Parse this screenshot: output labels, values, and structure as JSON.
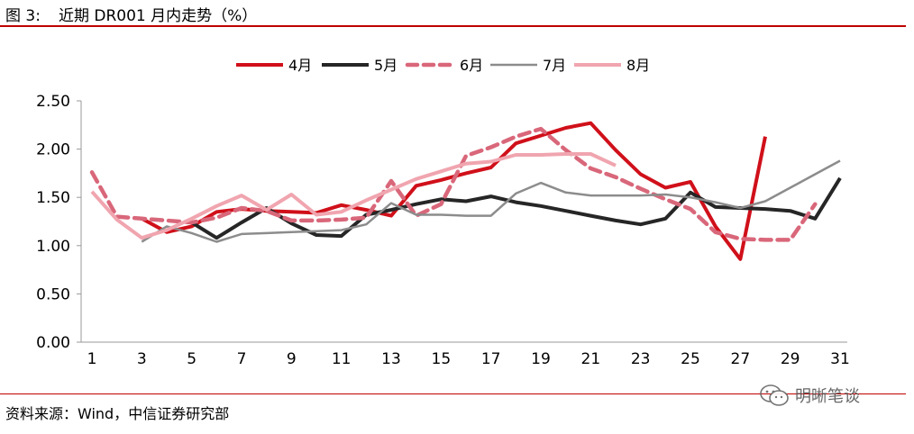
{
  "figure": {
    "number": "图 3:",
    "title": "近期 DR001 月内走势（%）",
    "source": "资料来源：Wind，中信证券研究部",
    "watermark_icon": "wechat-icon",
    "watermark_text": "明晰笔谈"
  },
  "chart_data": {
    "type": "line",
    "title": "近期 DR001 月内走势（%）",
    "xlabel": "",
    "ylabel": "",
    "xlim": [
      1,
      31
    ],
    "ylim": [
      0,
      2.5
    ],
    "x_ticks": [
      "1",
      "3",
      "5",
      "7",
      "9",
      "11",
      "13",
      "15",
      "17",
      "19",
      "21",
      "23",
      "25",
      "27",
      "29",
      "31"
    ],
    "y_ticks": [
      "0.00",
      "0.50",
      "1.00",
      "1.50",
      "2.00",
      "2.50"
    ],
    "grid": false,
    "legend_position": "top",
    "series": [
      {
        "name": "4月",
        "color": "#d0101a",
        "style": "solid-thick",
        "points": [
          [
            3,
            1.28
          ],
          [
            4,
            1.14
          ],
          [
            5,
            1.2
          ],
          [
            6,
            1.35
          ],
          [
            7,
            1.38
          ],
          [
            8,
            1.36
          ],
          [
            9,
            1.35
          ],
          [
            10,
            1.34
          ],
          [
            11,
            1.42
          ],
          [
            12,
            1.37
          ],
          [
            13,
            1.31
          ],
          [
            14,
            1.62
          ],
          [
            15,
            1.68
          ],
          [
            16,
            1.75
          ],
          [
            17,
            1.81
          ],
          [
            18,
            2.06
          ],
          [
            19,
            2.14
          ],
          [
            20,
            2.22
          ],
          [
            21,
            2.27
          ],
          [
            22,
            1.99
          ],
          [
            23,
            1.74
          ],
          [
            24,
            1.6
          ],
          [
            25,
            1.66
          ],
          [
            26,
            1.2
          ],
          [
            27,
            0.86
          ],
          [
            28,
            2.13
          ]
        ]
      },
      {
        "name": "5月",
        "color": "#262626",
        "style": "solid-thick",
        "points": [
          [
            5,
            1.24
          ],
          [
            6,
            1.08
          ],
          [
            7,
            1.24
          ],
          [
            8,
            1.39
          ],
          [
            9,
            1.23
          ],
          [
            10,
            1.11
          ],
          [
            11,
            1.1
          ],
          [
            12,
            1.32
          ],
          [
            13,
            1.37
          ],
          [
            14,
            1.43
          ],
          [
            15,
            1.48
          ],
          [
            16,
            1.46
          ],
          [
            17,
            1.51
          ],
          [
            18,
            1.45
          ],
          [
            19,
            1.41
          ],
          [
            20,
            1.36
          ],
          [
            21,
            1.31
          ],
          [
            22,
            1.26
          ],
          [
            23,
            1.22
          ],
          [
            24,
            1.28
          ],
          [
            25,
            1.55
          ],
          [
            26,
            1.4
          ],
          [
            27,
            1.39
          ],
          [
            28,
            1.38
          ],
          [
            29,
            1.36
          ],
          [
            30,
            1.28
          ],
          [
            31,
            1.7
          ]
        ]
      },
      {
        "name": "6月",
        "color": "#d9677a",
        "style": "dashed",
        "points": [
          [
            1,
            1.76
          ],
          [
            2,
            1.3
          ],
          [
            3,
            1.28
          ],
          [
            4,
            1.26
          ],
          [
            5,
            1.24
          ],
          [
            6,
            1.29
          ],
          [
            7,
            1.39
          ],
          [
            8,
            1.36
          ],
          [
            9,
            1.26
          ],
          [
            10,
            1.26
          ],
          [
            11,
            1.27
          ],
          [
            12,
            1.29
          ],
          [
            13,
            1.67
          ],
          [
            14,
            1.31
          ],
          [
            15,
            1.43
          ],
          [
            16,
            1.93
          ],
          [
            17,
            2.02
          ],
          [
            18,
            2.13
          ],
          [
            19,
            2.21
          ],
          [
            20,
            1.99
          ],
          [
            21,
            1.8
          ],
          [
            22,
            1.71
          ],
          [
            23,
            1.59
          ],
          [
            24,
            1.48
          ],
          [
            25,
            1.38
          ],
          [
            26,
            1.14
          ],
          [
            27,
            1.07
          ],
          [
            28,
            1.06
          ],
          [
            29,
            1.06
          ],
          [
            30,
            1.43
          ]
        ]
      },
      {
        "name": "7月",
        "color": "#8c8c8c",
        "style": "solid-thin",
        "points": [
          [
            3,
            1.04
          ],
          [
            4,
            1.2
          ],
          [
            5,
            1.13
          ],
          [
            6,
            1.04
          ],
          [
            7,
            1.12
          ],
          [
            8,
            1.13
          ],
          [
            9,
            1.14
          ],
          [
            10,
            1.15
          ],
          [
            11,
            1.16
          ],
          [
            12,
            1.22
          ],
          [
            13,
            1.44
          ],
          [
            14,
            1.32
          ],
          [
            15,
            1.32
          ],
          [
            16,
            1.31
          ],
          [
            17,
            1.31
          ],
          [
            18,
            1.54
          ],
          [
            19,
            1.65
          ],
          [
            20,
            1.55
          ],
          [
            21,
            1.52
          ],
          [
            22,
            1.52
          ],
          [
            23,
            1.52
          ],
          [
            24,
            1.53
          ],
          [
            25,
            1.5
          ],
          [
            26,
            1.45
          ],
          [
            27,
            1.39
          ],
          [
            28,
            1.46
          ],
          [
            29,
            1.6
          ],
          [
            30,
            1.74
          ],
          [
            31,
            1.88
          ]
        ]
      },
      {
        "name": "8月",
        "color": "#f0a5af",
        "style": "solid-thick",
        "points": [
          [
            1,
            1.56
          ],
          [
            2,
            1.27
          ],
          [
            3,
            1.08
          ],
          [
            4,
            1.16
          ],
          [
            5,
            1.28
          ],
          [
            6,
            1.41
          ],
          [
            7,
            1.52
          ],
          [
            8,
            1.37
          ],
          [
            9,
            1.53
          ],
          [
            10,
            1.32
          ],
          [
            11,
            1.35
          ],
          [
            12,
            1.47
          ],
          [
            13,
            1.58
          ],
          [
            14,
            1.69
          ],
          [
            15,
            1.77
          ],
          [
            16,
            1.85
          ],
          [
            17,
            1.87
          ],
          [
            18,
            1.94
          ],
          [
            19,
            1.94
          ],
          [
            20,
            1.95
          ],
          [
            21,
            1.95
          ],
          [
            22,
            1.83
          ]
        ]
      }
    ]
  }
}
